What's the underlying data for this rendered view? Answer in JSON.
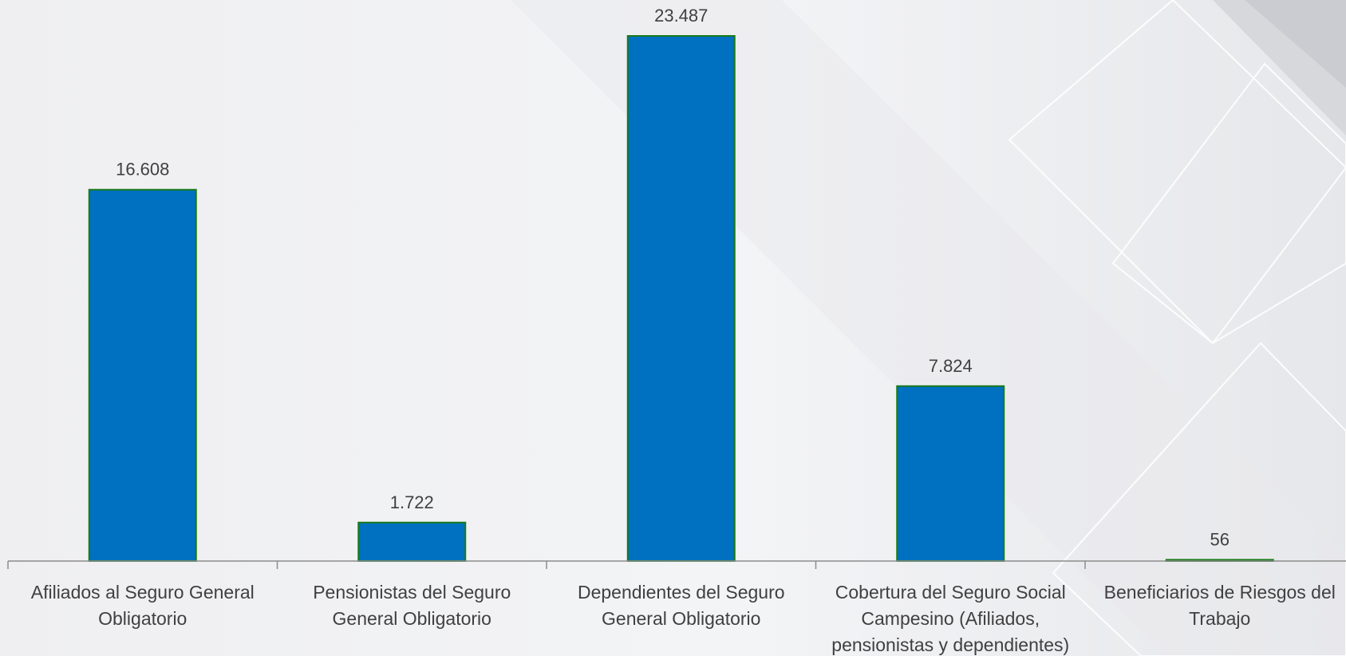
{
  "chart_data": {
    "type": "bar",
    "categories": [
      [
        "Afiliados al Seguro General",
        "Obligatorio"
      ],
      [
        "Pensionistas del Seguro",
        "General Obligatorio"
      ],
      [
        "Dependientes del Seguro",
        "General Obligatorio"
      ],
      [
        "Cobertura del Seguro Social",
        "Campesino (Afiliados,",
        "pensionistas y dependientes)"
      ],
      [
        "Beneficiarios de Riesgos del",
        "Trabajo"
      ]
    ],
    "values": [
      16608,
      1722,
      23487,
      7824,
      56
    ],
    "data_labels": [
      "16.608",
      "1.722",
      "23.487",
      "7.824",
      "56"
    ],
    "ylim": [
      0,
      25000
    ],
    "grid": false,
    "legend": "none",
    "colors": {
      "bar_fill": "#0070C0",
      "bar_stroke": "#1a7a1a",
      "axis": "#8c8c8c",
      "label": "#404040",
      "background": "#f0f1f3"
    }
  }
}
